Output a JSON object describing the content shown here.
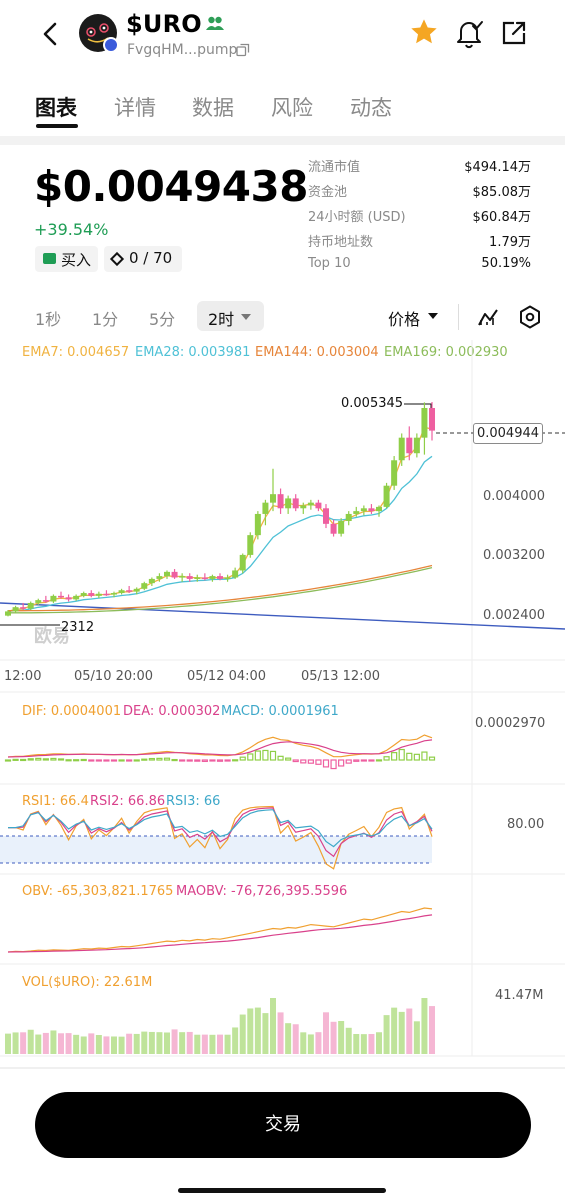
{
  "header": {
    "token_name": "$URO",
    "address": "FvgqHM...pump"
  },
  "tabs": [
    {
      "label": "图表",
      "active": true
    },
    {
      "label": "详情",
      "active": false
    },
    {
      "label": "数据",
      "active": false
    },
    {
      "label": "风险",
      "active": false
    },
    {
      "label": "动态",
      "active": false
    }
  ],
  "price": {
    "value": "$0.0049438",
    "change": "+39.54%",
    "buy_label": "买入",
    "holders_count": "0 / 70"
  },
  "stats": [
    {
      "label": "流通市值",
      "value": "$494.14万"
    },
    {
      "label": "资金池",
      "value": "$85.08万"
    },
    {
      "label": "24小时额 (USD)",
      "value": "$60.84万"
    },
    {
      "label": "持币地址数",
      "value": "1.79万"
    },
    {
      "label": "Top 10",
      "value": "50.19%"
    }
  ],
  "timeframes": [
    "1秒",
    "1分",
    "5分"
  ],
  "timeframe_active": "2时",
  "price_selector": "价格",
  "ema_legend": [
    {
      "text": "EMA7: 0.004657",
      "color": "#f0b341"
    },
    {
      "text": "EMA28: 0.003981",
      "color": "#4fc1d6"
    },
    {
      "text": "EMA144: 0.003004",
      "color": "#e6853a"
    },
    {
      "text": "EMA169: 0.002930",
      "color": "#8cbc5a"
    }
  ],
  "price_axis": [
    "0.004000",
    "0.003200",
    "0.002400"
  ],
  "current_price_tag": "0.004944",
  "high_price_label": "0.005345",
  "low_price_label": "2312",
  "watermark": "欧易",
  "time_axis": [
    "12:00",
    "05/10 20:00",
    "05/12 04:00",
    "05/13 12:00"
  ],
  "macd": {
    "dif": "DIF: 0.0004001",
    "dea": "DEA: 0.000302",
    "macd": "MACD: 0.0001961",
    "axis": "0.0002970"
  },
  "rsi": {
    "rsi1": "RSI1: 66.4",
    "rsi2": "RSI2: 66.86",
    "rsi3": "RSI3: 66",
    "axis": "80.00"
  },
  "obv": {
    "obv": "OBV: -65,303,821.1765",
    "maobv": "MAOBV: -76,726,395.5596"
  },
  "vol": {
    "label": "VOL($URO): 22.61M",
    "axis": "41.47M"
  },
  "trade_button": "交易",
  "colors": {
    "up": "#8fce47",
    "down": "#ee5fa0",
    "positive_text": "#1f9d55",
    "accent_star": "#f5a623"
  },
  "chart_data": {
    "type": "candlestick",
    "timeframe": "2h",
    "x_ticks": [
      "12:00",
      "05/10 20:00",
      "05/12 04:00",
      "05/13 12:00"
    ],
    "price_ticks": [
      0.0024,
      0.0032,
      0.004
    ],
    "high": 0.005345,
    "current": 0.004944,
    "candles": [
      {
        "o": 0.00232,
        "h": 0.0024,
        "l": 0.00231,
        "c": 0.00238
      },
      {
        "o": 0.00238,
        "h": 0.00246,
        "l": 0.00236,
        "c": 0.00244
      },
      {
        "o": 0.00244,
        "h": 0.0025,
        "l": 0.0024,
        "c": 0.00242
      },
      {
        "o": 0.00242,
        "h": 0.00252,
        "l": 0.0024,
        "c": 0.0025
      },
      {
        "o": 0.0025,
        "h": 0.00256,
        "l": 0.00247,
        "c": 0.00254
      },
      {
        "o": 0.00254,
        "h": 0.0026,
        "l": 0.0025,
        "c": 0.00252
      },
      {
        "o": 0.00252,
        "h": 0.00262,
        "l": 0.0025,
        "c": 0.0026
      },
      {
        "o": 0.0026,
        "h": 0.00266,
        "l": 0.00256,
        "c": 0.00258
      },
      {
        "o": 0.00258,
        "h": 0.00262,
        "l": 0.00252,
        "c": 0.00255
      },
      {
        "o": 0.00255,
        "h": 0.00262,
        "l": 0.00253,
        "c": 0.0026
      },
      {
        "o": 0.0026,
        "h": 0.00266,
        "l": 0.00258,
        "c": 0.00264
      },
      {
        "o": 0.00264,
        "h": 0.00268,
        "l": 0.00258,
        "c": 0.0026
      },
      {
        "o": 0.0026,
        "h": 0.00266,
        "l": 0.00257,
        "c": 0.00263
      },
      {
        "o": 0.00263,
        "h": 0.00268,
        "l": 0.0026,
        "c": 0.00262
      },
      {
        "o": 0.00262,
        "h": 0.00266,
        "l": 0.00258,
        "c": 0.00264
      },
      {
        "o": 0.00264,
        "h": 0.0027,
        "l": 0.00262,
        "c": 0.00268
      },
      {
        "o": 0.00268,
        "h": 0.00274,
        "l": 0.00264,
        "c": 0.00266
      },
      {
        "o": 0.00266,
        "h": 0.00272,
        "l": 0.00262,
        "c": 0.0027
      },
      {
        "o": 0.0027,
        "h": 0.0028,
        "l": 0.00268,
        "c": 0.00278
      },
      {
        "o": 0.00278,
        "h": 0.00286,
        "l": 0.00274,
        "c": 0.00284
      },
      {
        "o": 0.00284,
        "h": 0.00292,
        "l": 0.0028,
        "c": 0.00288
      },
      {
        "o": 0.00288,
        "h": 0.00296,
        "l": 0.00284,
        "c": 0.00294
      },
      {
        "o": 0.00294,
        "h": 0.00298,
        "l": 0.00284,
        "c": 0.00286
      },
      {
        "o": 0.00286,
        "h": 0.00292,
        "l": 0.0028,
        "c": 0.00288
      },
      {
        "o": 0.00288,
        "h": 0.00292,
        "l": 0.0028,
        "c": 0.00284
      },
      {
        "o": 0.00284,
        "h": 0.0029,
        "l": 0.0028,
        "c": 0.00286
      },
      {
        "o": 0.00286,
        "h": 0.00292,
        "l": 0.00282,
        "c": 0.00284
      },
      {
        "o": 0.00284,
        "h": 0.0029,
        "l": 0.0028,
        "c": 0.00288
      },
      {
        "o": 0.00288,
        "h": 0.00292,
        "l": 0.00282,
        "c": 0.00284
      },
      {
        "o": 0.00284,
        "h": 0.0029,
        "l": 0.0028,
        "c": 0.00286
      },
      {
        "o": 0.00286,
        "h": 0.003,
        "l": 0.00284,
        "c": 0.00296
      },
      {
        "o": 0.00296,
        "h": 0.0032,
        "l": 0.00292,
        "c": 0.00318
      },
      {
        "o": 0.00318,
        "h": 0.0035,
        "l": 0.00314,
        "c": 0.00346
      },
      {
        "o": 0.00346,
        "h": 0.0038,
        "l": 0.0034,
        "c": 0.00376
      },
      {
        "o": 0.00376,
        "h": 0.00396,
        "l": 0.0036,
        "c": 0.00392
      },
      {
        "o": 0.00392,
        "h": 0.0044,
        "l": 0.0038,
        "c": 0.00404
      },
      {
        "o": 0.00404,
        "h": 0.00412,
        "l": 0.00376,
        "c": 0.00384
      },
      {
        "o": 0.00384,
        "h": 0.00402,
        "l": 0.00376,
        "c": 0.00398
      },
      {
        "o": 0.00398,
        "h": 0.00404,
        "l": 0.0038,
        "c": 0.00384
      },
      {
        "o": 0.00384,
        "h": 0.00392,
        "l": 0.00376,
        "c": 0.00388
      },
      {
        "o": 0.00388,
        "h": 0.00396,
        "l": 0.00382,
        "c": 0.00392
      },
      {
        "o": 0.00392,
        "h": 0.00396,
        "l": 0.0038,
        "c": 0.00384
      },
      {
        "o": 0.00384,
        "h": 0.0039,
        "l": 0.00356,
        "c": 0.00362
      },
      {
        "o": 0.00362,
        "h": 0.00368,
        "l": 0.00344,
        "c": 0.00348
      },
      {
        "o": 0.00348,
        "h": 0.0037,
        "l": 0.00344,
        "c": 0.00366
      },
      {
        "o": 0.00366,
        "h": 0.0038,
        "l": 0.0036,
        "c": 0.00376
      },
      {
        "o": 0.00376,
        "h": 0.00386,
        "l": 0.00372,
        "c": 0.0038
      },
      {
        "o": 0.0038,
        "h": 0.00388,
        "l": 0.00374,
        "c": 0.00384
      },
      {
        "o": 0.00384,
        "h": 0.0039,
        "l": 0.00376,
        "c": 0.0038
      },
      {
        "o": 0.0038,
        "h": 0.00388,
        "l": 0.00372,
        "c": 0.00386
      },
      {
        "o": 0.00386,
        "h": 0.0042,
        "l": 0.00384,
        "c": 0.00416
      },
      {
        "o": 0.00416,
        "h": 0.00458,
        "l": 0.0041,
        "c": 0.00452
      },
      {
        "o": 0.00452,
        "h": 0.0049,
        "l": 0.00444,
        "c": 0.00484
      },
      {
        "o": 0.00484,
        "h": 0.005,
        "l": 0.00452,
        "c": 0.00462
      },
      {
        "o": 0.00462,
        "h": 0.0049,
        "l": 0.00456,
        "c": 0.00484
      },
      {
        "o": 0.00484,
        "h": 0.00534,
        "l": 0.0046,
        "c": 0.00526
      },
      {
        "o": 0.00526,
        "h": 0.005345,
        "l": 0.0048,
        "c": 0.00494
      }
    ]
  }
}
